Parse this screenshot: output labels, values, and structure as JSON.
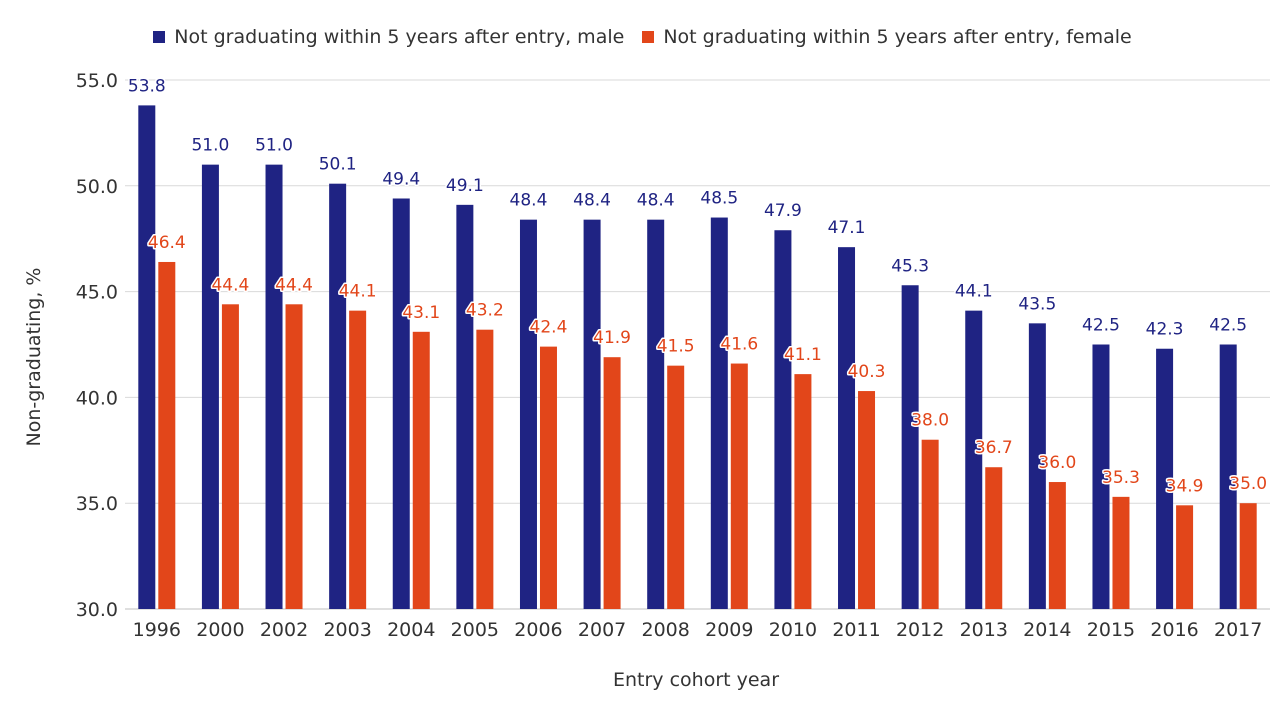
{
  "chart_data": {
    "type": "bar",
    "categories": [
      "1996",
      "2000",
      "2002",
      "2003",
      "2004",
      "2005",
      "2006",
      "2007",
      "2008",
      "2009",
      "2010",
      "2011",
      "2012",
      "2013",
      "2014",
      "2015",
      "2016",
      "2017"
    ],
    "series": [
      {
        "name": "Not graduating within 5 years after entry, male",
        "color": "#1f2383",
        "values": [
          53.8,
          51.0,
          51.0,
          50.1,
          49.4,
          49.1,
          48.4,
          48.4,
          48.4,
          48.5,
          47.9,
          47.1,
          45.3,
          44.1,
          43.5,
          42.5,
          42.3,
          42.5
        ]
      },
      {
        "name": "Not graduating within 5 years after entry, female",
        "color": "#e2461a",
        "values": [
          46.4,
          44.4,
          44.4,
          44.1,
          43.1,
          43.2,
          42.4,
          41.9,
          41.5,
          41.6,
          41.1,
          40.3,
          38.0,
          36.7,
          36.0,
          35.3,
          34.9,
          35.0
        ]
      }
    ],
    "xlabel": "Entry cohort year",
    "ylabel": "Non-graduating, %",
    "ylim": [
      30,
      55
    ],
    "yticks": [
      "30.0",
      "35.0",
      "40.0",
      "45.0",
      "50.0",
      "55.0"
    ],
    "grid": true,
    "legend_position": "top-center"
  }
}
